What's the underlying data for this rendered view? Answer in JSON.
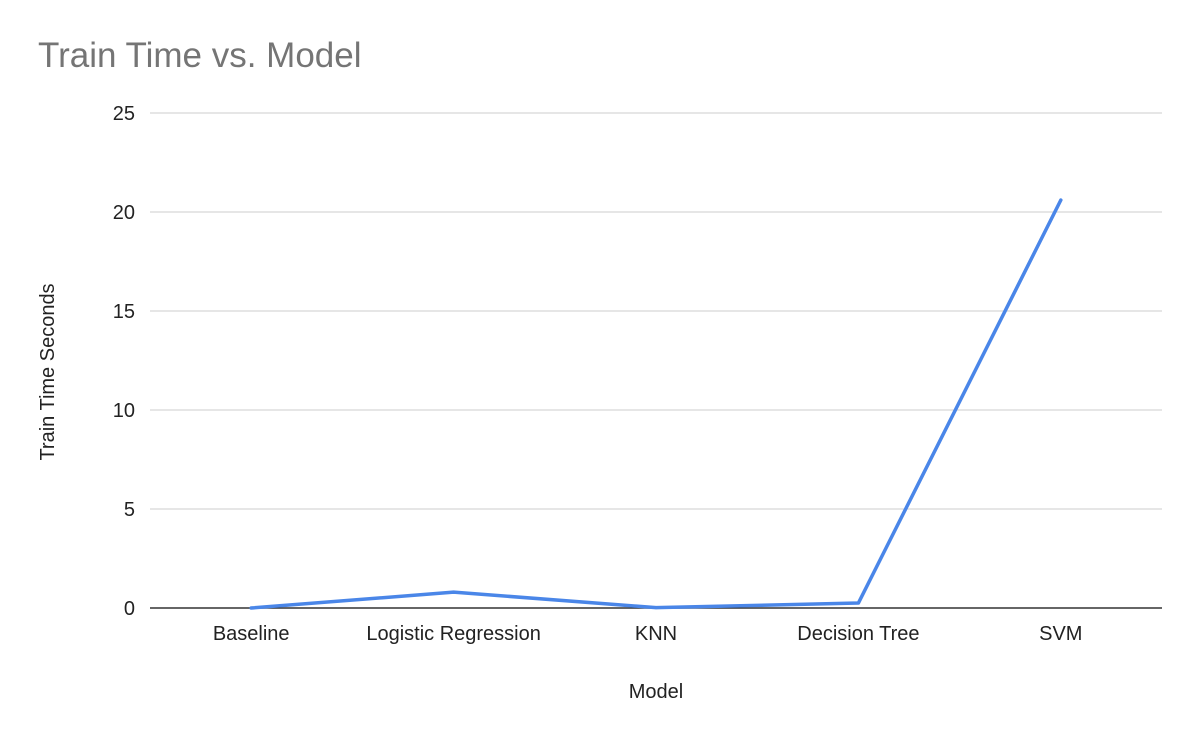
{
  "chart_data": {
    "type": "line",
    "title": "Train Time vs. Model",
    "xlabel": "Model",
    "ylabel": "Train Time Seconds",
    "categories": [
      "Baseline",
      "Logistic Regression",
      "KNN",
      "Decision Tree",
      "SVM"
    ],
    "series": [
      {
        "values": [
          0.0,
          0.8,
          0.02,
          0.25,
          20.6
        ],
        "color": "#4a86e8"
      }
    ],
    "ylim": [
      0,
      25
    ],
    "yticks": [
      "0",
      "5",
      "10",
      "15",
      "20",
      "25"
    ],
    "grid": true,
    "legend": "none"
  }
}
